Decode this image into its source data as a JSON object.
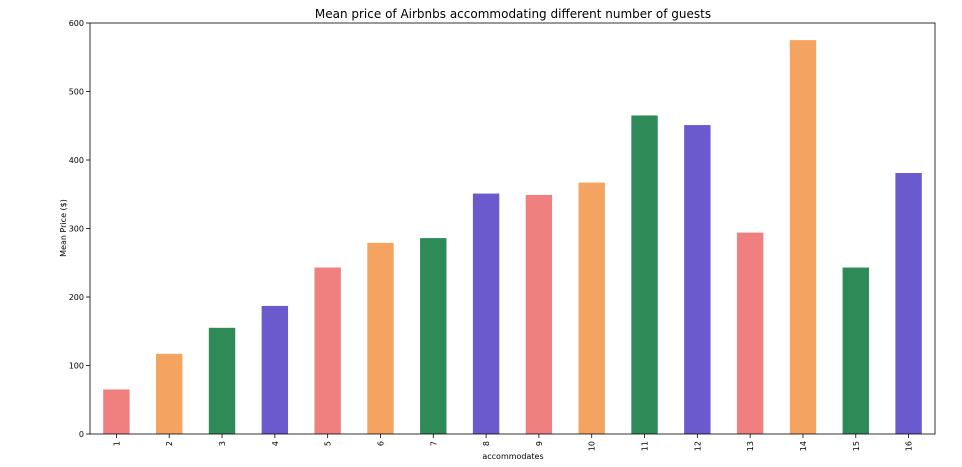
{
  "chart_data": {
    "type": "bar",
    "title": "Mean price of Airbnbs accommodating different number of guests",
    "xlabel": "accommodates",
    "ylabel": "Mean Price ($)",
    "categories": [
      "1",
      "2",
      "3",
      "4",
      "5",
      "6",
      "7",
      "8",
      "9",
      "10",
      "11",
      "12",
      "13",
      "14",
      "15",
      "16"
    ],
    "values": [
      65,
      117,
      155,
      187,
      243,
      279,
      286,
      351,
      349,
      367,
      465,
      451,
      294,
      575,
      243,
      381
    ],
    "colors": [
      "#f08080",
      "#f4a460",
      "#2e8b57",
      "#6a5acd",
      "#f08080",
      "#f4a460",
      "#2e8b57",
      "#6a5acd",
      "#f08080",
      "#f4a460",
      "#2e8b57",
      "#6a5acd",
      "#f08080",
      "#f4a460",
      "#2e8b57",
      "#6a5acd"
    ],
    "yticks": [
      0,
      100,
      200,
      300,
      400,
      500,
      600
    ],
    "ylim": [
      0,
      600
    ],
    "grid": false,
    "legend": "none"
  }
}
